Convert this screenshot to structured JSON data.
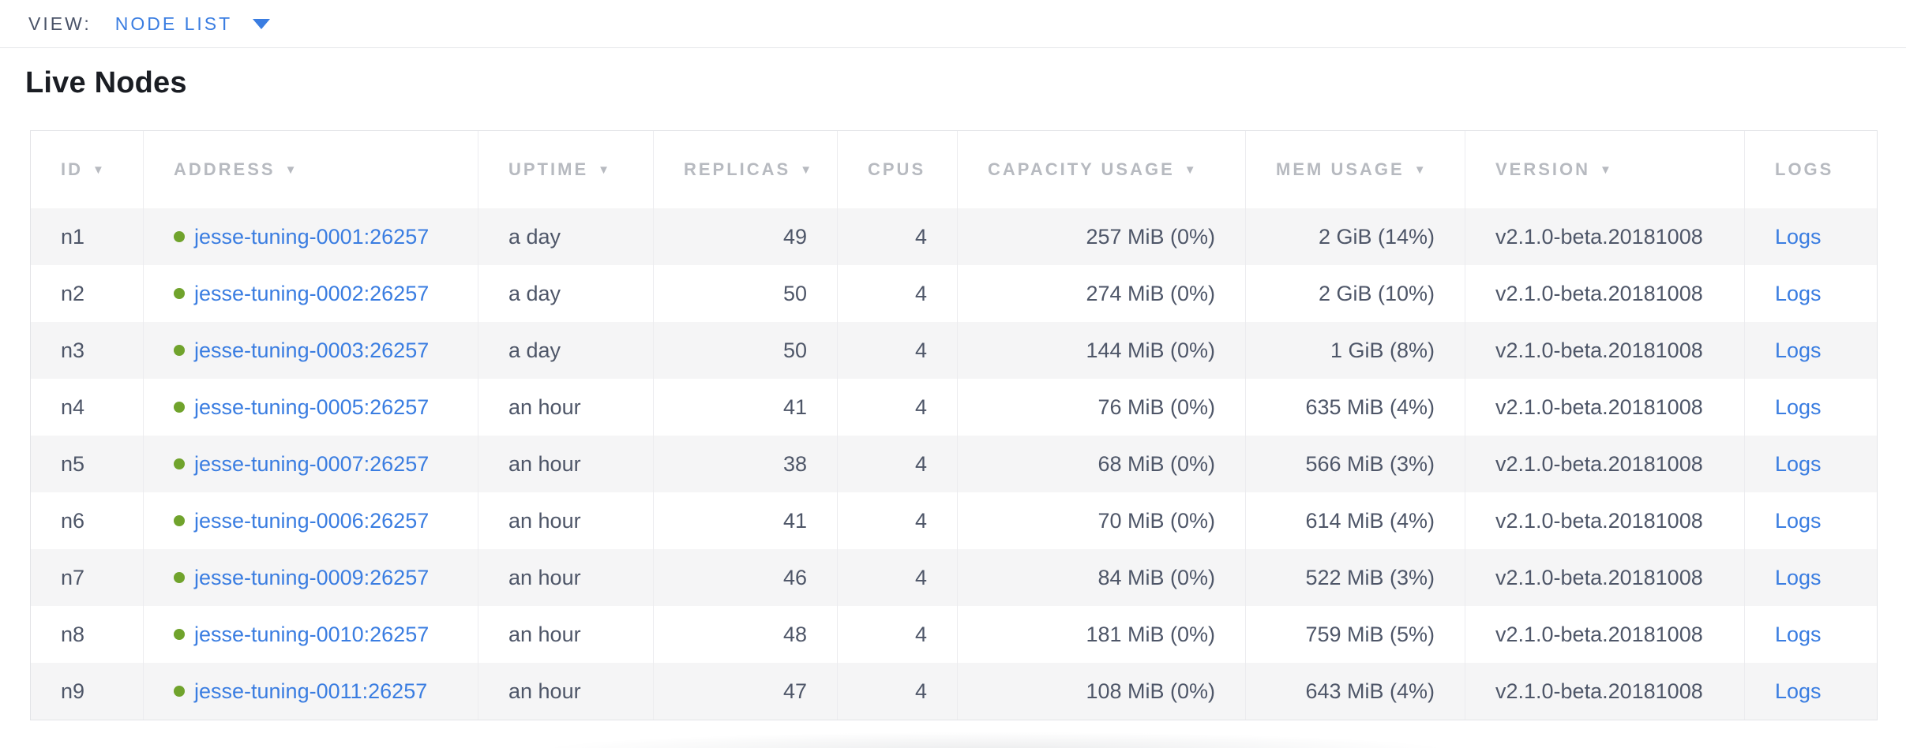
{
  "view_bar": {
    "label": "VIEW:",
    "selected": "NODE LIST"
  },
  "page": {
    "title": "Live Nodes"
  },
  "icons": {
    "sort_desc": "▼",
    "dropdown_caret": "▾",
    "health_dot": "circle"
  },
  "colors": {
    "link_blue": "#3a7de1",
    "health_green": "#70a32c",
    "header_text": "#b7bac0",
    "cell_text": "#4e5668",
    "alt_row_bg": "#f5f5f6"
  },
  "table": {
    "columns": [
      {
        "key": "id",
        "label": "ID",
        "sortable": true,
        "align": "left"
      },
      {
        "key": "address",
        "label": "ADDRESS",
        "sortable": true,
        "align": "left"
      },
      {
        "key": "uptime",
        "label": "UPTIME",
        "sortable": true,
        "align": "left"
      },
      {
        "key": "replicas",
        "label": "REPLICAS",
        "sortable": true,
        "align": "right"
      },
      {
        "key": "cpus",
        "label": "CPUS",
        "sortable": false,
        "align": "right"
      },
      {
        "key": "capacity",
        "label": "CAPACITY USAGE",
        "sortable": true,
        "align": "right"
      },
      {
        "key": "mem",
        "label": "MEM USAGE",
        "sortable": true,
        "align": "right"
      },
      {
        "key": "version",
        "label": "VERSION",
        "sortable": true,
        "align": "left"
      },
      {
        "key": "logs",
        "label": "LOGS",
        "sortable": false,
        "align": "left"
      }
    ],
    "rows": [
      {
        "id": "n1",
        "address": "jesse-tuning-0001:26257",
        "uptime": "a day",
        "replicas": "49",
        "cpus": "4",
        "capacity": "257 MiB (0%)",
        "mem": "2 GiB (14%)",
        "version": "v2.1.0-beta.20181008",
        "logs": "Logs"
      },
      {
        "id": "n2",
        "address": "jesse-tuning-0002:26257",
        "uptime": "a day",
        "replicas": "50",
        "cpus": "4",
        "capacity": "274 MiB (0%)",
        "mem": "2 GiB (10%)",
        "version": "v2.1.0-beta.20181008",
        "logs": "Logs"
      },
      {
        "id": "n3",
        "address": "jesse-tuning-0003:26257",
        "uptime": "a day",
        "replicas": "50",
        "cpus": "4",
        "capacity": "144 MiB (0%)",
        "mem": "1 GiB (8%)",
        "version": "v2.1.0-beta.20181008",
        "logs": "Logs"
      },
      {
        "id": "n4",
        "address": "jesse-tuning-0005:26257",
        "uptime": "an hour",
        "replicas": "41",
        "cpus": "4",
        "capacity": "76 MiB (0%)",
        "mem": "635 MiB (4%)",
        "version": "v2.1.0-beta.20181008",
        "logs": "Logs"
      },
      {
        "id": "n5",
        "address": "jesse-tuning-0007:26257",
        "uptime": "an hour",
        "replicas": "38",
        "cpus": "4",
        "capacity": "68 MiB (0%)",
        "mem": "566 MiB (3%)",
        "version": "v2.1.0-beta.20181008",
        "logs": "Logs"
      },
      {
        "id": "n6",
        "address": "jesse-tuning-0006:26257",
        "uptime": "an hour",
        "replicas": "41",
        "cpus": "4",
        "capacity": "70 MiB (0%)",
        "mem": "614 MiB (4%)",
        "version": "v2.1.0-beta.20181008",
        "logs": "Logs"
      },
      {
        "id": "n7",
        "address": "jesse-tuning-0009:26257",
        "uptime": "an hour",
        "replicas": "46",
        "cpus": "4",
        "capacity": "84 MiB (0%)",
        "mem": "522 MiB (3%)",
        "version": "v2.1.0-beta.20181008",
        "logs": "Logs"
      },
      {
        "id": "n8",
        "address": "jesse-tuning-0010:26257",
        "uptime": "an hour",
        "replicas": "48",
        "cpus": "4",
        "capacity": "181 MiB (0%)",
        "mem": "759 MiB (5%)",
        "version": "v2.1.0-beta.20181008",
        "logs": "Logs"
      },
      {
        "id": "n9",
        "address": "jesse-tuning-0011:26257",
        "uptime": "an hour",
        "replicas": "47",
        "cpus": "4",
        "capacity": "108 MiB (0%)",
        "mem": "643 MiB (4%)",
        "version": "v2.1.0-beta.20181008",
        "logs": "Logs"
      }
    ]
  }
}
